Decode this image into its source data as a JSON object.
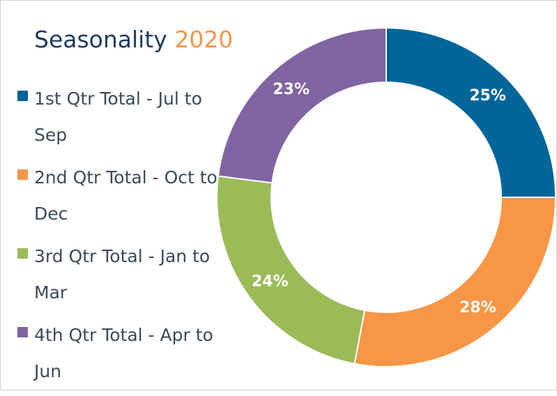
{
  "chart_data": {
    "type": "pie",
    "title": "Seasonality",
    "title_year": "2020",
    "donut": true,
    "legend_position": "left",
    "categories": [
      "1st Qtr Total - Jul to Sep",
      "2nd Qtr Total - Oct to Dec",
      "3rd Qtr Total - Jan to Mar",
      "4th Qtr Total - Apr to Jun"
    ],
    "values": [
      25,
      28,
      24,
      23
    ],
    "labels": [
      "25%",
      "28%",
      "24%",
      "23%"
    ],
    "colors": [
      "#006699",
      "#f79646",
      "#9bbb59",
      "#8064a2"
    ]
  }
}
